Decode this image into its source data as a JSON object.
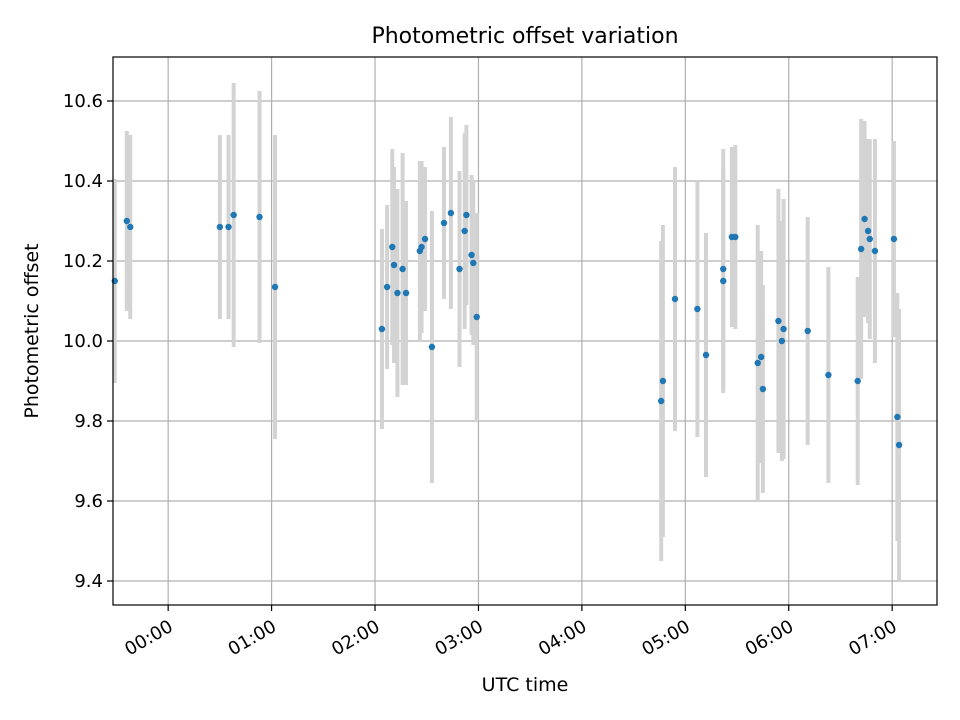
{
  "chart_data": {
    "type": "scatter",
    "title": "Photometric offset variation",
    "xlabel": "UTC time",
    "ylabel": "Photometric offset",
    "x_unit": "UTC hh:mm",
    "xlim": [
      "-00:32",
      "07:26"
    ],
    "ylim": [
      9.34,
      10.71
    ],
    "xticks": [
      "00:00",
      "01:00",
      "02:00",
      "03:00",
      "04:00",
      "05:00",
      "06:00",
      "07:00"
    ],
    "yticks": [
      "9.4",
      "9.6",
      "9.8",
      "10.0",
      "10.2",
      "10.4",
      "10.6"
    ],
    "grid": true,
    "legend": "none",
    "colors": {
      "point": "#1f77b4",
      "errorbar": "#d3d3d3",
      "grid": "#b0b0b0"
    },
    "series": [
      {
        "points": [
          {
            "x": "-00:31",
            "y": 10.15,
            "err": 0.255
          },
          {
            "x": "-00:24",
            "y": 10.3,
            "err": 0.225
          },
          {
            "x": "-00:22",
            "y": 10.285,
            "err": 0.23
          },
          {
            "x": "00:30",
            "y": 10.285,
            "err": 0.23
          },
          {
            "x": "00:35",
            "y": 10.285,
            "err": 0.23
          },
          {
            "x": "00:38",
            "y": 10.315,
            "err": 0.33
          },
          {
            "x": "00:53",
            "y": 10.31,
            "err": 0.315
          },
          {
            "x": "01:02",
            "y": 10.135,
            "err": 0.38
          },
          {
            "x": "02:04",
            "y": 10.03,
            "err": 0.25
          },
          {
            "x": "02:07",
            "y": 10.135,
            "err": 0.205
          },
          {
            "x": "02:10",
            "y": 10.235,
            "err": 0.245
          },
          {
            "x": "02:11",
            "y": 10.19,
            "err": 0.245
          },
          {
            "x": "02:13",
            "y": 10.12,
            "err": 0.26
          },
          {
            "x": "02:16",
            "y": 10.18,
            "err": 0.29
          },
          {
            "x": "02:18",
            "y": 10.12,
            "err": 0.23
          },
          {
            "x": "02:26",
            "y": 10.225,
            "err": 0.225
          },
          {
            "x": "02:27",
            "y": 10.235,
            "err": 0.215
          },
          {
            "x": "02:29",
            "y": 10.255,
            "err": 0.18
          },
          {
            "x": "02:33",
            "y": 9.985,
            "err": 0.34
          },
          {
            "x": "02:40",
            "y": 10.295,
            "err": 0.19
          },
          {
            "x": "02:44",
            "y": 10.32,
            "err": 0.24
          },
          {
            "x": "02:49",
            "y": 10.18,
            "err": 0.245
          },
          {
            "x": "02:52",
            "y": 10.275,
            "err": 0.245
          },
          {
            "x": "02:53",
            "y": 10.315,
            "err": 0.225
          },
          {
            "x": "02:56",
            "y": 10.215,
            "err": 0.2
          },
          {
            "x": "02:57",
            "y": 10.195,
            "err": 0.205
          },
          {
            "x": "02:59",
            "y": 10.06,
            "err": 0.26
          },
          {
            "x": "04:46",
            "y": 9.85,
            "err": 0.4
          },
          {
            "x": "04:47",
            "y": 9.9,
            "err": 0.39
          },
          {
            "x": "04:54",
            "y": 10.105,
            "err": 0.33
          },
          {
            "x": "05:07",
            "y": 10.08,
            "err": 0.32
          },
          {
            "x": "05:12",
            "y": 9.965,
            "err": 0.305
          },
          {
            "x": "05:22",
            "y": 10.15,
            "err": 0.28
          },
          {
            "x": "05:22",
            "y": 10.18,
            "err": 0.3
          },
          {
            "x": "05:27",
            "y": 10.26,
            "err": 0.225
          },
          {
            "x": "05:29",
            "y": 10.26,
            "err": 0.23
          },
          {
            "x": "05:42",
            "y": 9.945,
            "err": 0.345
          },
          {
            "x": "05:44",
            "y": 9.96,
            "err": 0.265
          },
          {
            "x": "05:45",
            "y": 9.88,
            "err": 0.26
          },
          {
            "x": "05:54",
            "y": 10.05,
            "err": 0.33
          },
          {
            "x": "05:56",
            "y": 10.0,
            "err": 0.3
          },
          {
            "x": "05:57",
            "y": 10.03,
            "err": 0.325
          },
          {
            "x": "06:11",
            "y": 10.025,
            "err": 0.285
          },
          {
            "x": "06:23",
            "y": 9.915,
            "err": 0.27
          },
          {
            "x": "06:40",
            "y": 9.9,
            "err": 0.26
          },
          {
            "x": "06:42",
            "y": 10.23,
            "err": 0.325
          },
          {
            "x": "06:44",
            "y": 10.305,
            "err": 0.245
          },
          {
            "x": "06:46",
            "y": 10.275,
            "err": 0.23
          },
          {
            "x": "06:47",
            "y": 10.255,
            "err": 0.25
          },
          {
            "x": "06:50",
            "y": 10.225,
            "err": 0.28
          },
          {
            "x": "07:01",
            "y": 10.255,
            "err": 0.245
          },
          {
            "x": "07:03",
            "y": 9.81,
            "err": 0.31
          },
          {
            "x": "07:04",
            "y": 9.74,
            "err": 0.34
          }
        ]
      }
    ]
  }
}
